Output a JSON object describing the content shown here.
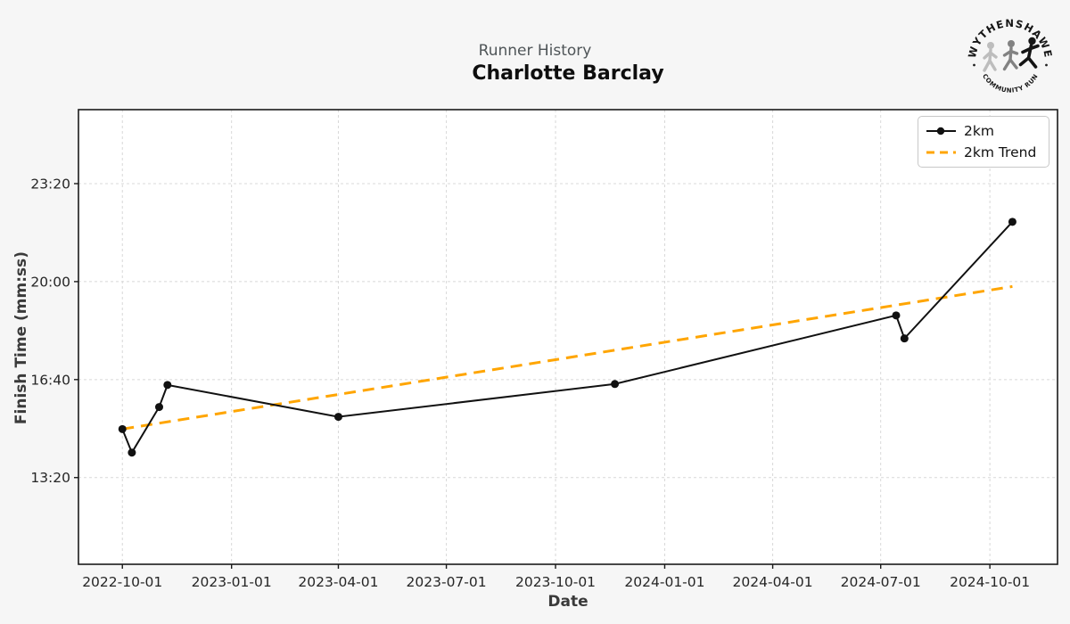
{
  "header": {
    "subtitle": "Runner History",
    "title": "Charlotte Barclay"
  },
  "logo": {
    "top_text": "WYTHENSHAWE",
    "bottom_text": "COMMUNITY RUN"
  },
  "chart_data": {
    "type": "line",
    "title": "Charlotte Barclay",
    "subtitle": "Runner History",
    "xlabel": "Date",
    "ylabel": "Finish Time (mm:ss)",
    "grid": true,
    "legend_position": "upper right",
    "x_ticks": [
      "2022-10-01",
      "2023-01-01",
      "2023-04-01",
      "2023-07-01",
      "2023-10-01",
      "2024-01-01",
      "2024-04-01",
      "2024-07-01",
      "2024-10-01"
    ],
    "y_ticks": [
      {
        "label": "13:20",
        "seconds": 800
      },
      {
        "label": "16:40",
        "seconds": 1000
      },
      {
        "label": "20:00",
        "seconds": 1200
      },
      {
        "label": "23:20",
        "seconds": 1400
      }
    ],
    "xlim": [
      "2022-08-25",
      "2024-11-27"
    ],
    "ylim_seconds": [
      623,
      1551
    ],
    "series": [
      {
        "name": "2km",
        "style": "solid-marker",
        "color": "#111111",
        "points": [
          {
            "date": "2022-10-01",
            "time": "14:59",
            "seconds": 899
          },
          {
            "date": "2022-10-09",
            "time": "14:11",
            "seconds": 851
          },
          {
            "date": "2022-11-01",
            "time": "15:44",
            "seconds": 944
          },
          {
            "date": "2022-11-08",
            "time": "16:29",
            "seconds": 989
          },
          {
            "date": "2023-04-01",
            "time": "15:24",
            "seconds": 924
          },
          {
            "date": "2023-11-20",
            "time": "16:31",
            "seconds": 991
          },
          {
            "date": "2024-07-14",
            "time": "18:51",
            "seconds": 1131
          },
          {
            "date": "2024-07-21",
            "time": "18:04",
            "seconds": 1084
          },
          {
            "date": "2024-10-20",
            "time": "22:02",
            "seconds": 1322
          }
        ]
      },
      {
        "name": "2km Trend",
        "style": "dashed",
        "color": "#FFA500",
        "points": [
          {
            "date": "2022-10-01",
            "time": "14:59",
            "seconds": 899
          },
          {
            "date": "2024-10-20",
            "time": "19:50",
            "seconds": 1190
          }
        ]
      }
    ]
  },
  "colors": {
    "figure_bg": "#f6f6f6",
    "plot_bg": "#ffffff",
    "gridline": "#d8d8d8",
    "spine": "#1a1a1a",
    "tick_label": "#262626",
    "line": "#111111",
    "trend": "#FFA500"
  }
}
